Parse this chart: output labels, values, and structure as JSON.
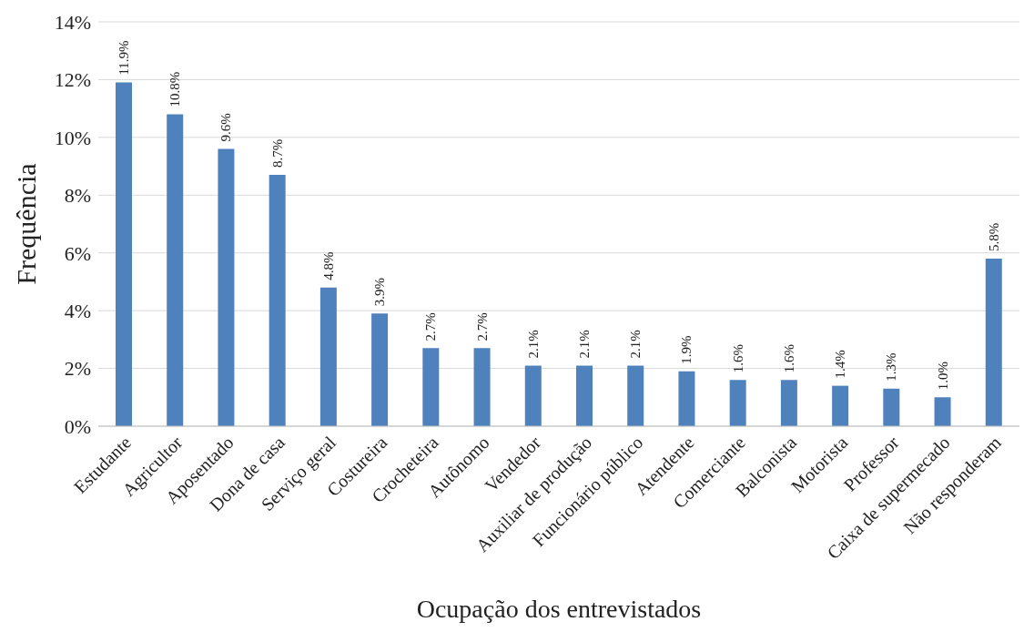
{
  "chart_data": {
    "type": "bar",
    "xlabel": "Ocupação dos entrevistados",
    "ylabel": "Frequência",
    "categories": [
      "Estudante",
      "Agricultor",
      "Aposentado",
      "Dona de casa",
      "Serviço geral",
      "Costureira",
      "Crocheteira",
      "Autônomo",
      "Vendedor",
      "Auxiliar de produção",
      "Funcionário público",
      "Atendente",
      "Comerciante",
      "Balconista",
      "Motorista",
      "Professor",
      "Caixa de supermecado",
      "Não responderam"
    ],
    "values": [
      11.9,
      10.8,
      9.6,
      8.7,
      4.8,
      3.9,
      2.7,
      2.7,
      2.1,
      2.1,
      2.1,
      1.9,
      1.6,
      1.6,
      1.4,
      1.3,
      1.0,
      5.8
    ],
    "value_labels": [
      "11.9%",
      "10.8%",
      "9.6%",
      "8.7%",
      "4.8%",
      "3.9%",
      "2.7%",
      "2.7%",
      "2.1%",
      "2.1%",
      "2.1%",
      "1.9%",
      "1.6%",
      "1.6%",
      "1.4%",
      "1.3%",
      "1.0%",
      "5.8%"
    ],
    "color": "#4f81bd",
    "ylim": [
      0,
      14
    ],
    "yticks": [
      {
        "value": 0,
        "label": "0%"
      },
      {
        "value": 2,
        "label": "2%"
      },
      {
        "value": 4,
        "label": "4%"
      },
      {
        "value": 6,
        "label": "6%"
      },
      {
        "value": 8,
        "label": "8%"
      },
      {
        "value": 10,
        "label": "10%"
      },
      {
        "value": 12,
        "label": "12%"
      },
      {
        "value": 14,
        "label": "14%"
      }
    ],
    "grid": "y",
    "legend": false
  }
}
